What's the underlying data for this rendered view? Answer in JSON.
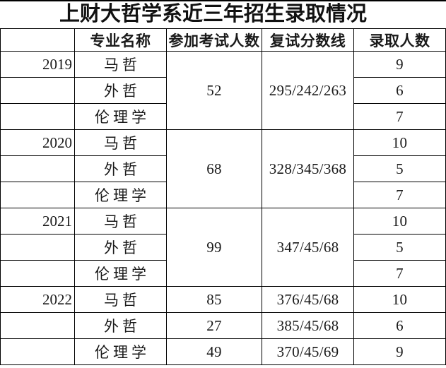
{
  "title": "上财大哲学系近三年招生录取情况",
  "table": {
    "headers": [
      "",
      "专业名称",
      "参加考试人数",
      "复试分数线",
      "录取人数"
    ],
    "rows": [
      [
        {
          "t": "2019"
        },
        {
          "t": "马哲"
        },
        {
          "t": "52",
          "rs": 3
        },
        {
          "t": "295/242/263",
          "rs": 3
        },
        {
          "t": "9"
        }
      ],
      [
        {
          "t": ""
        },
        {
          "t": "外哲"
        },
        null,
        null,
        {
          "t": "6"
        }
      ],
      [
        {
          "t": ""
        },
        {
          "t": "伦理学"
        },
        null,
        null,
        {
          "t": "7"
        }
      ],
      [
        {
          "t": "2020"
        },
        {
          "t": "马哲"
        },
        {
          "t": "68",
          "rs": 3
        },
        {
          "t": "328/345/368",
          "rs": 3
        },
        {
          "t": "10"
        }
      ],
      [
        {
          "t": ""
        },
        {
          "t": "外哲"
        },
        null,
        null,
        {
          "t": "5"
        }
      ],
      [
        {
          "t": ""
        },
        {
          "t": "伦理学"
        },
        null,
        null,
        {
          "t": "7"
        }
      ],
      [
        {
          "t": "2021"
        },
        {
          "t": "马哲"
        },
        {
          "t": "99",
          "rs": 3
        },
        {
          "t": "347/45/68",
          "rs": 3
        },
        {
          "t": "10"
        }
      ],
      [
        {
          "t": ""
        },
        {
          "t": "外哲"
        },
        null,
        null,
        {
          "t": "5"
        }
      ],
      [
        {
          "t": ""
        },
        {
          "t": "伦理学"
        },
        null,
        null,
        {
          "t": "7"
        }
      ],
      [
        {
          "t": "2022"
        },
        {
          "t": "马哲"
        },
        {
          "t": "85"
        },
        {
          "t": "376/45/68"
        },
        {
          "t": "10"
        }
      ],
      [
        {
          "t": ""
        },
        {
          "t": "外哲"
        },
        {
          "t": "27"
        },
        {
          "t": "385/45/68"
        },
        {
          "t": "6"
        }
      ],
      [
        {
          "t": ""
        },
        {
          "t": "伦理学"
        },
        {
          "t": "49"
        },
        {
          "t": "370/45/69"
        },
        {
          "t": "9"
        }
      ]
    ]
  },
  "colors": {
    "border": "#000000",
    "text": "#1a1a1a",
    "background": "#ffffff"
  }
}
